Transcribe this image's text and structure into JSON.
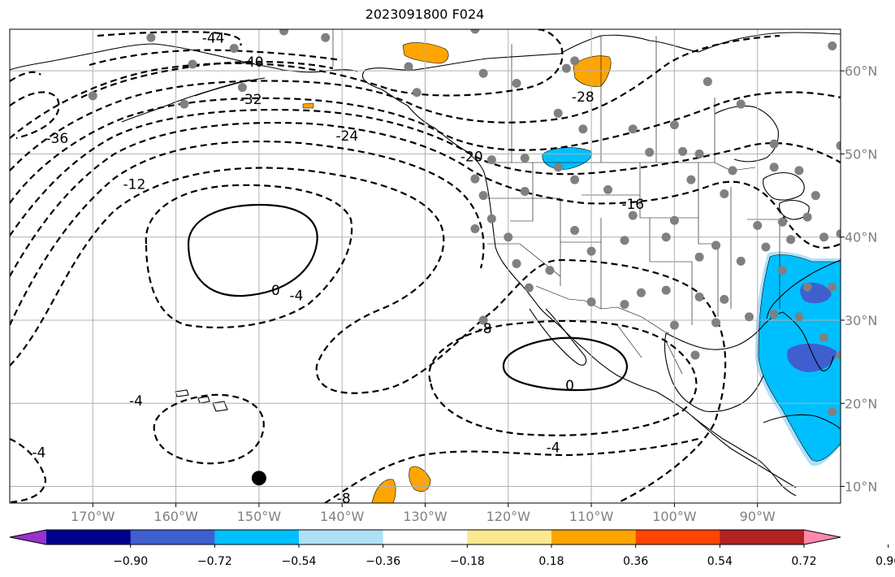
{
  "title": "2023091800 F024",
  "map": {
    "projection": "PlateCarree",
    "lon_range": [
      -180,
      -80
    ],
    "lat_range": [
      8,
      65
    ],
    "grid": true,
    "lon_ticks": [
      -170,
      -160,
      -150,
      -140,
      -130,
      -120,
      -110,
      -100,
      -90
    ],
    "lon_tick_labels": [
      "170°W",
      "160°W",
      "150°W",
      "140°W",
      "130°W",
      "120°W",
      "110°W",
      "100°W",
      "90°W"
    ],
    "lat_ticks": [
      10,
      20,
      30,
      40,
      50,
      60
    ],
    "lat_tick_labels": [
      "10°N",
      "20°N",
      "30°N",
      "40°N",
      "50°N",
      "60°N"
    ],
    "contour_labels": [
      {
        "text": "-44",
        "lon": -155.5,
        "lat": 63.9
      },
      {
        "text": "-40",
        "lon": -150.8,
        "lat": 61.0
      },
      {
        "text": "-36",
        "lon": -174.3,
        "lat": 51.8
      },
      {
        "text": "-32",
        "lon": -151.0,
        "lat": 56.5
      },
      {
        "text": "-24",
        "lon": -139.4,
        "lat": 52.1
      },
      {
        "text": "-20",
        "lon": -124.4,
        "lat": 49.6
      },
      {
        "text": "-28",
        "lon": -111.0,
        "lat": 56.8
      },
      {
        "text": "-16",
        "lon": -105.0,
        "lat": 43.9
      },
      {
        "text": "-12",
        "lon": -165.0,
        "lat": 46.3
      },
      {
        "text": "0",
        "lon": -148.0,
        "lat": 33.5
      },
      {
        "text": "-4",
        "lon": -145.5,
        "lat": 32.9
      },
      {
        "text": "-8",
        "lon": -122.8,
        "lat": 28.9
      },
      {
        "text": "0",
        "lon": -112.6,
        "lat": 22.1
      },
      {
        "text": "-4",
        "lon": -114.6,
        "lat": 14.6
      },
      {
        "text": "-4",
        "lon": -164.8,
        "lat": 20.2
      },
      {
        "text": "-4",
        "lon": -176.5,
        "lat": 14.0
      },
      {
        "text": "-8",
        "lon": -139.8,
        "lat": 8.5
      }
    ],
    "marker": {
      "lon": -150,
      "lat": 11
    }
  },
  "colorbar": {
    "colors": [
      "#9932cc",
      "#00008b",
      "#3f5fcf",
      "#00bfff",
      "#b0e0f8",
      "#ffffff",
      "#fce890",
      "#ffa500",
      "#ff4500",
      "#b22222",
      "#ff88aa"
    ],
    "boundary_labels": [
      "−0.90",
      "−0.72",
      "−0.54",
      "−0.36",
      "−0.18",
      "0.18",
      "0.36",
      "0.54",
      "0.72",
      "0.90"
    ]
  }
}
